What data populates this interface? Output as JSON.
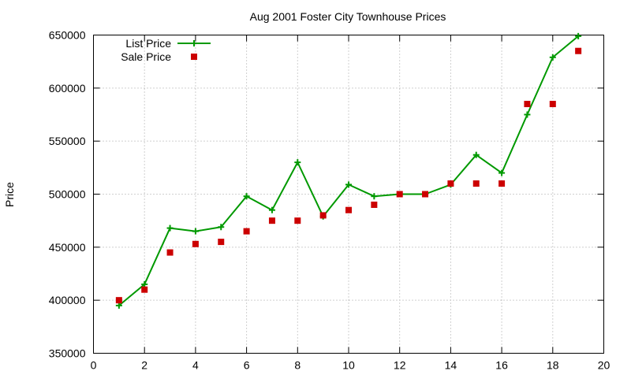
{
  "chart_data": {
    "type": "line",
    "title": "Aug 2001 Foster City Townhouse Prices",
    "xlabel": "",
    "ylabel": "Price",
    "xlim": [
      0,
      20
    ],
    "ylim": [
      350000,
      650000
    ],
    "xticks": [
      0,
      2,
      4,
      6,
      8,
      10,
      12,
      14,
      16,
      18,
      20
    ],
    "yticks": [
      350000,
      400000,
      450000,
      500000,
      550000,
      600000,
      650000
    ],
    "grid": true,
    "legend_position": "top-left",
    "series": [
      {
        "name": "List Price",
        "style": "line-with-plus-markers",
        "color": "#009900",
        "x": [
          1,
          2,
          3,
          4,
          5,
          6,
          7,
          8,
          9,
          10,
          11,
          12,
          13,
          14,
          15,
          16,
          17,
          18,
          19
        ],
        "y": [
          395000,
          415000,
          468000,
          465000,
          469000,
          498000,
          485000,
          530000,
          479000,
          509000,
          498000,
          500000,
          500000,
          509000,
          537000,
          520000,
          575000,
          629000,
          649000
        ]
      },
      {
        "name": "Sale Price",
        "style": "square-markers",
        "color": "#cc0000",
        "x": [
          1,
          2,
          3,
          4,
          5,
          6,
          7,
          8,
          9,
          10,
          11,
          12,
          13,
          14,
          15,
          16,
          17,
          18,
          19
        ],
        "y": [
          400000,
          410000,
          445000,
          453000,
          455000,
          465000,
          475000,
          475000,
          480000,
          485000,
          490000,
          500000,
          500000,
          510000,
          510000,
          510000,
          585000,
          585000,
          635000
        ]
      }
    ]
  }
}
